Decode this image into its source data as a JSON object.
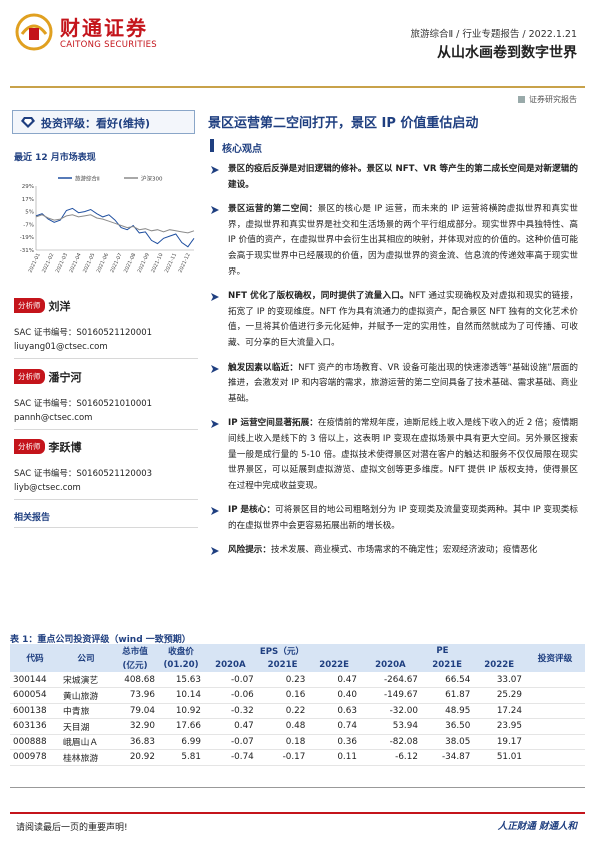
{
  "header": {
    "logo_cn": "财通证券",
    "logo_en": "CAITONG SECURITIES",
    "breadcrumb": "旅游综合Ⅱ / 行业专题报告 / 2022.1.21",
    "title": "从山水画卷到数字世界",
    "report_type": "证券研究报告"
  },
  "sidebar": {
    "rating": "投资评级：看好(维持)",
    "perf_title": "最近 12 月市场表现",
    "analysts": [
      {
        "tag": "分析师",
        "name": "刘洋",
        "sac": "SAC 证书编号：S0160521120001",
        "email": "liuyang01@ctsec.com"
      },
      {
        "tag": "分析师",
        "name": "潘宁河",
        "sac": "SAC 证书编号：S0160521010001",
        "email": "pannh@ctsec.com"
      },
      {
        "tag": "分析师",
        "name": "李跃博",
        "sac": "SAC 证书编号：S0160521120003",
        "email": "liyb@ctsec.com"
      }
    ],
    "related": "相关报告"
  },
  "chart_data": {
    "type": "line",
    "series": [
      {
        "name": "旅游综合Ⅱ",
        "color": "#1f4fa0",
        "values": [
          1,
          3,
          -2,
          -5,
          -3,
          6,
          8,
          4,
          5,
          7,
          3,
          0,
          2,
          -3,
          -10,
          -12,
          -8,
          -15,
          -14,
          -22,
          -25,
          -20,
          -18,
          -16,
          -24,
          -28,
          -20
        ]
      },
      {
        "name": "沪深300",
        "color": "#8b8b8b",
        "values": [
          0,
          2,
          -1,
          -3,
          -2,
          1,
          2,
          0,
          1,
          2,
          -1,
          -2,
          -4,
          -6,
          -8,
          -10,
          -9,
          -12,
          -11,
          -13,
          -12,
          -14,
          -12,
          -13,
          -14,
          -15,
          -13
        ]
      }
    ],
    "x_tick_labels": [
      "2021-01",
      "2021-02",
      "2021-03",
      "2021-04",
      "2021-05",
      "2021-06",
      "2021-07",
      "2021-08",
      "2021-09",
      "2021-10",
      "2021-11",
      "2021-12"
    ],
    "y_tick_labels": [
      "29%",
      "17%",
      "5%",
      "-7%",
      "-19%",
      "-31%"
    ],
    "ylim": [
      -31,
      29
    ],
    "legend_position": "top"
  },
  "content": {
    "headline": "景区运营第二空间打开，景区 IP 价值重估启动",
    "subhead": "核心观点",
    "bullets": [
      {
        "bold": "景区的疫后反弹是对旧逻辑的修补。景区以 NFT、VR 等产生的第二成长空间是对新逻辑的建设。",
        "text": ""
      },
      {
        "bold": "景区运营的第二空间：",
        "text": "景区的核心是 IP 运营，而未来的 IP 运营将横跨虚拟世界和真实世界，虚拟世界和真实世界是社交和生活场景的两个平行组成部分。现实世界中具独特性、高 IP 价值的资产，在虚拟世界中会衍生出其相应的映射，并体现对应的价值的。这种价值可能会高于现实世界中已经展现的价值，因为虚拟世界的资金流、信息流的传递效率高于现实世界。"
      },
      {
        "bold": "NFT 优化了版权确权，同时提供了流量入口。",
        "text": "NFT 通过实现确权及对虚拟和现实的链接，拓宽了 IP 的变现维度。NFT 作为具有流通力的虚拟资产，配合景区 NFT 独有的文化艺术价值，一旦将其价值进行多元化延伸，并赋予一定的实用性，自然而然就成为了可传播、可收藏、可分享的巨大流量入口。"
      },
      {
        "bold": "触发因素以临近：",
        "text": "NFT 资产的市场教育、VR 设备可能出现的快速渗透等“基础设施”层面的推进，会激发对 IP 和内容端的需求，旅游运营的第二空间具备了技术基础、需求基础、商业基础。"
      },
      {
        "bold": "IP 运营空间显著拓展：",
        "text": "在疫情前的常规年度，迪斯尼线上收入是线下收入的近 2 倍；疫情期间线上收入是线下的 3 倍以上，这表明 IP 变现在虚拟场景中具有更大空间。另外景区搜索量一般是成行量的 5-10 倍。虚拟技术使得景区对潜在客户的触达和服务不仅仅局限在现实世界景区，可以延展到虚拟游览、虚拟文创等更多维度。NFT 提供 IP 版权支持，使得景区在过程中完成收益变现。"
      },
      {
        "bold": "IP 是核心：",
        "text": "可将景区目的地公司粗略划分为 IP 变现类及流量变现类两种。其中 IP 变现类标的在虚拟世界中会更容易拓展出新的增长极。"
      },
      {
        "bold": "风险提示：",
        "text": "技术发展、商业模式、市场需求的不确定性；宏观经济波动；疫情恶化"
      }
    ]
  },
  "table": {
    "title": "表 1：重点公司投资评级（wind 一致预期）",
    "headers": {
      "code": "代码",
      "company": "公司",
      "mktcap": "总市值",
      "mktcap_unit": "(亿元)",
      "price": "收盘价",
      "price_date": "(01.20)",
      "eps": "EPS（元）",
      "pe": "PE",
      "rating": "投资评级",
      "years": [
        "2020A",
        "2021E",
        "2022E",
        "2020A",
        "2021E",
        "2022E"
      ]
    },
    "rows": [
      {
        "code": "300144",
        "name": "宋城演艺",
        "cap": "408.68",
        "price": "15.63",
        "eps": [
          "-0.07",
          "0.23",
          "0.47"
        ],
        "pe": [
          "-264.67",
          "66.54",
          "33.07"
        ],
        "rating": ""
      },
      {
        "code": "600054",
        "name": "黄山旅游",
        "cap": "73.96",
        "price": "10.14",
        "eps": [
          "-0.06",
          "0.16",
          "0.40"
        ],
        "pe": [
          "-149.67",
          "61.87",
          "25.29"
        ],
        "rating": ""
      },
      {
        "code": "600138",
        "name": "中青旅",
        "cap": "79.04",
        "price": "10.92",
        "eps": [
          "-0.32",
          "0.22",
          "0.63"
        ],
        "pe": [
          "-32.00",
          "48.95",
          "17.24"
        ],
        "rating": ""
      },
      {
        "code": "603136",
        "name": "天目湖",
        "cap": "32.90",
        "price": "17.66",
        "eps": [
          "0.47",
          "0.48",
          "0.74"
        ],
        "pe": [
          "53.94",
          "36.50",
          "23.95"
        ],
        "rating": ""
      },
      {
        "code": "000888",
        "name": "峨眉山Ａ",
        "cap": "36.83",
        "price": "6.99",
        "eps": [
          "-0.07",
          "0.18",
          "0.36"
        ],
        "pe": [
          "-82.08",
          "38.05",
          "19.17"
        ],
        "rating": ""
      },
      {
        "code": "000978",
        "name": "桂林旅游",
        "cap": "20.92",
        "price": "5.81",
        "eps": [
          "-0.74",
          "-0.17",
          "0.11"
        ],
        "pe": [
          "-6.12",
          "-34.87",
          "51.01"
        ],
        "rating": ""
      }
    ]
  },
  "footer": {
    "disclaimer": "请阅读最后一页的重要声明!",
    "slogan": "人正财通  财通人和"
  },
  "colors": {
    "brand_red": "#c4141b",
    "navy": "#1f3f80",
    "gold": "#c8a24a"
  }
}
